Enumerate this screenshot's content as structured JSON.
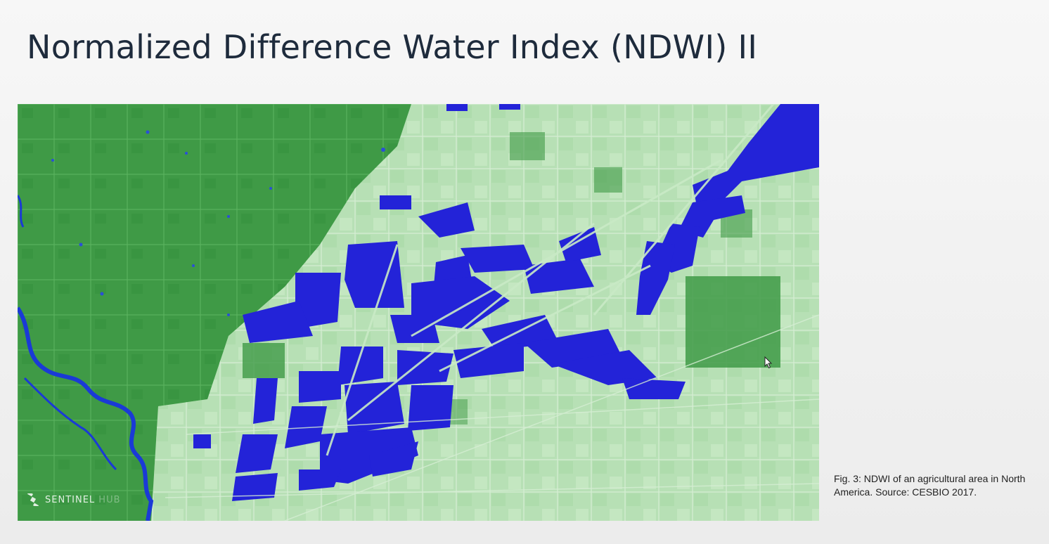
{
  "slide": {
    "title": "Normalized Difference Water Index (NDWI) II",
    "caption": "Fig. 3: NDWI of an agricultural area in North America. Source: CESBIO 2017."
  },
  "figure": {
    "watermark_text": "SENTINEL",
    "watermark_text_faded": "HUB",
    "watermark_icon": "satellite-icon",
    "colors": {
      "vegetation": "#3f9a46",
      "vegetation_dark": "#2f8a3a",
      "fields": "#b7e0b5",
      "water": "#2323d8",
      "river": "#1a3ad6"
    }
  },
  "cursor_icon": "mouse-pointer-icon"
}
